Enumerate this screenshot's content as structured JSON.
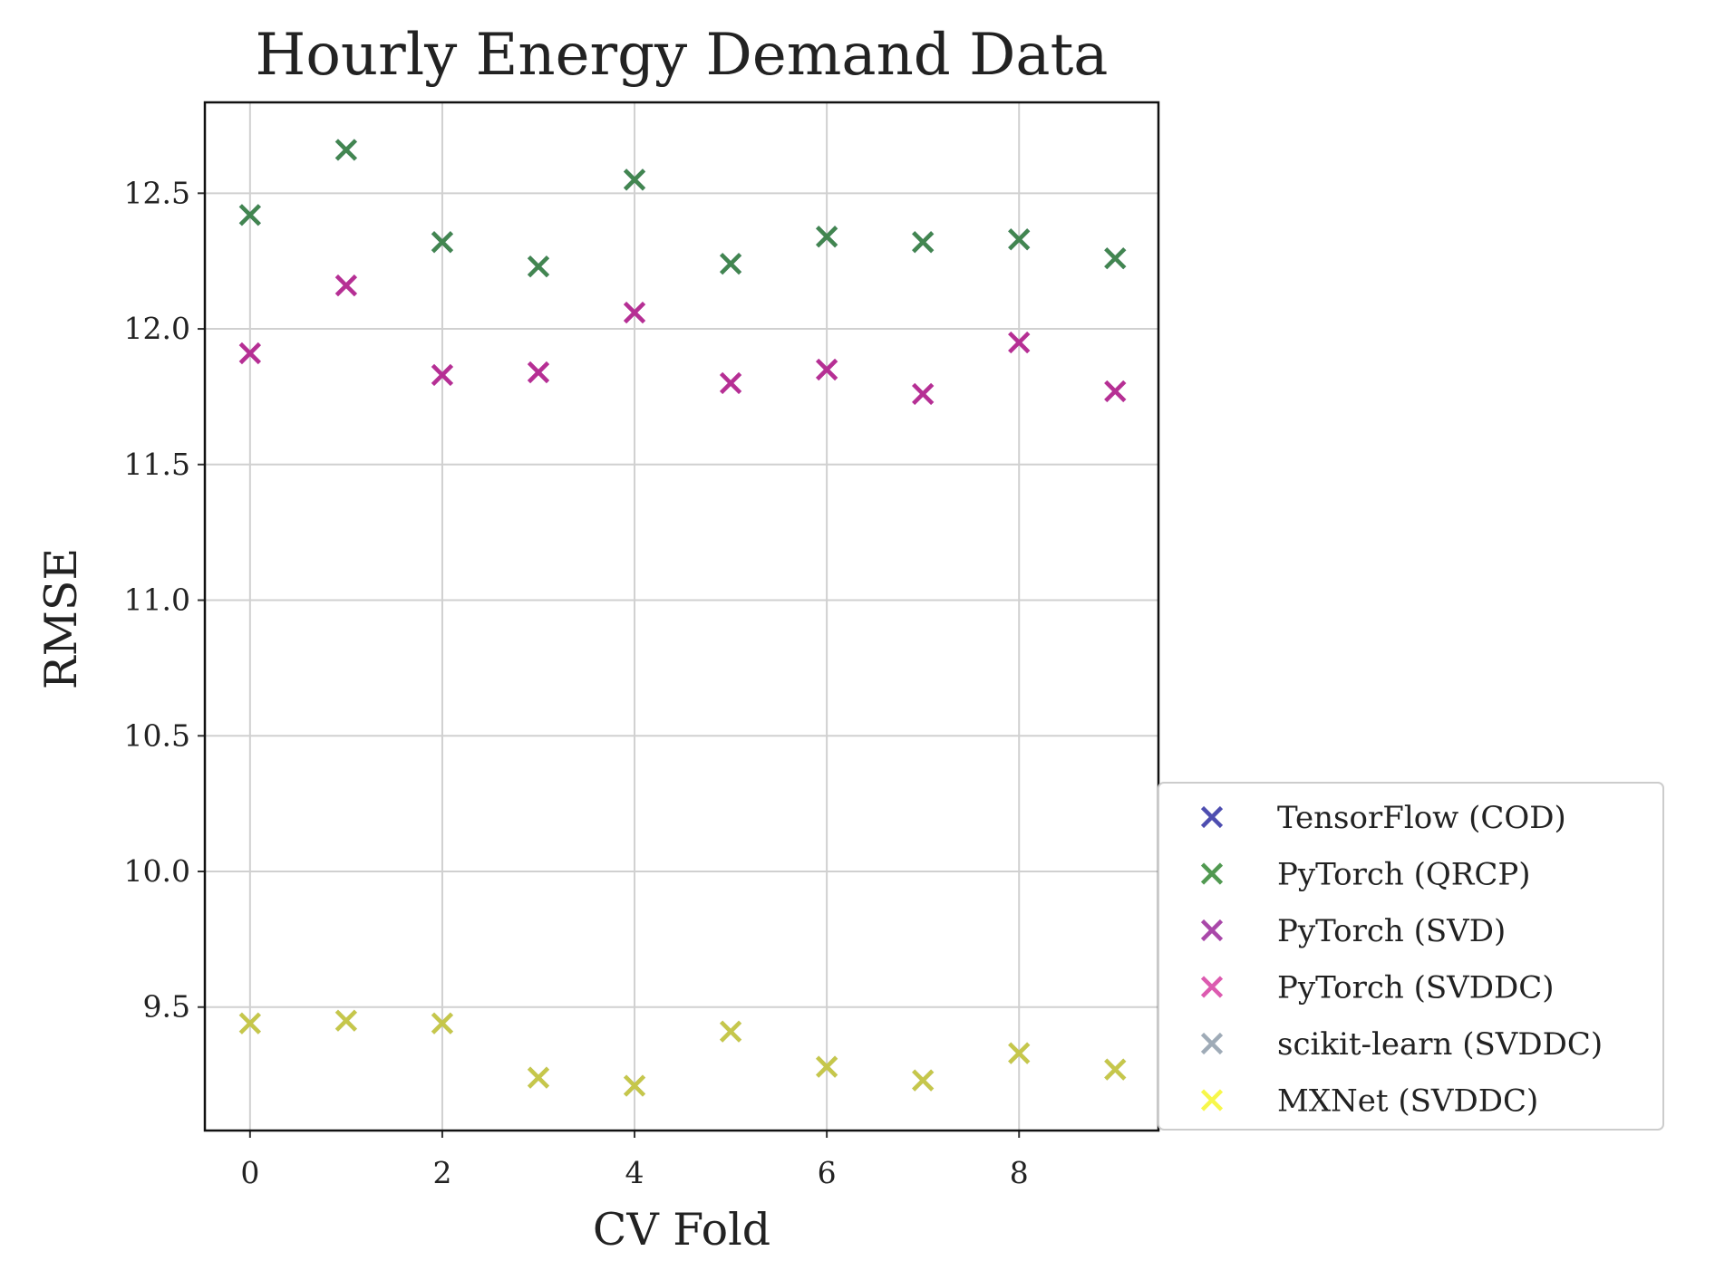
{
  "chart_data": {
    "type": "scatter",
    "title": "Hourly Energy Demand Data",
    "xlabel": "CV Fold",
    "ylabel": "RMSE",
    "xlim": [
      -0.47,
      9.45
    ],
    "ylim": [
      9.045,
      12.835
    ],
    "xticks": [
      0,
      2,
      4,
      6,
      8
    ],
    "yticks": [
      9.5,
      10.0,
      10.5,
      11.0,
      11.5,
      12.0,
      12.5
    ],
    "xtick_labels": [
      "0",
      "2",
      "4",
      "6",
      "8"
    ],
    "ytick_labels": [
      "9.5",
      "10.0",
      "10.5",
      "11.0",
      "11.5",
      "12.0",
      "12.5"
    ],
    "grid": true,
    "legend_position": "lower-right outside",
    "marker": "x",
    "series": [
      {
        "name": "TensorFlow (COD)",
        "color": "#3b3ba8",
        "x": [
          0,
          1,
          2,
          3,
          4,
          5,
          6,
          7,
          8,
          9
        ],
        "y": [
          12.42,
          12.66,
          12.32,
          12.23,
          12.55,
          12.24,
          12.34,
          12.32,
          12.33,
          12.26
        ]
      },
      {
        "name": "PyTorch (QRCP)",
        "color": "#3f8f3f",
        "x": [
          0,
          1,
          2,
          3,
          4,
          5,
          6,
          7,
          8,
          9
        ],
        "y": [
          12.42,
          12.66,
          12.32,
          12.23,
          12.55,
          12.24,
          12.34,
          12.32,
          12.33,
          12.26
        ]
      },
      {
        "name": "PyTorch (SVD)",
        "color": "#a035a0",
        "x": [
          0,
          1,
          2,
          3,
          4,
          5,
          6,
          7,
          8,
          9
        ],
        "y": [
          11.91,
          12.16,
          11.83,
          11.84,
          12.06,
          11.8,
          11.85,
          11.76,
          11.95,
          11.77
        ]
      },
      {
        "name": "PyTorch (SVDDC)",
        "color": "#d94aa8",
        "x": [
          0,
          1,
          2,
          3,
          4,
          5,
          6,
          7,
          8,
          9
        ],
        "y": [
          11.91,
          12.16,
          11.83,
          11.84,
          12.06,
          11.8,
          11.85,
          11.76,
          11.95,
          11.77
        ]
      },
      {
        "name": "scikit-learn (SVDDC)",
        "color": "#95a3b0",
        "x": [
          0,
          1,
          2,
          3,
          4,
          5,
          6,
          7,
          8,
          9
        ],
        "y": [
          9.44,
          9.45,
          9.44,
          9.24,
          9.21,
          9.41,
          9.28,
          9.23,
          9.33,
          9.27
        ]
      },
      {
        "name": "MXNet (SVDDC)",
        "color": "#f7f738",
        "x": [
          0,
          1,
          2,
          3,
          4,
          5,
          6,
          7,
          8,
          9
        ],
        "y": [
          9.44,
          9.45,
          9.44,
          9.24,
          9.21,
          9.41,
          9.28,
          9.23,
          9.33,
          9.27
        ]
      }
    ],
    "rendered_mark_colors": [
      "#3b3ba8",
      "#3f8f3f",
      "#a035a0",
      "#b82a90",
      "#95a3b0",
      "#cccc38"
    ]
  }
}
